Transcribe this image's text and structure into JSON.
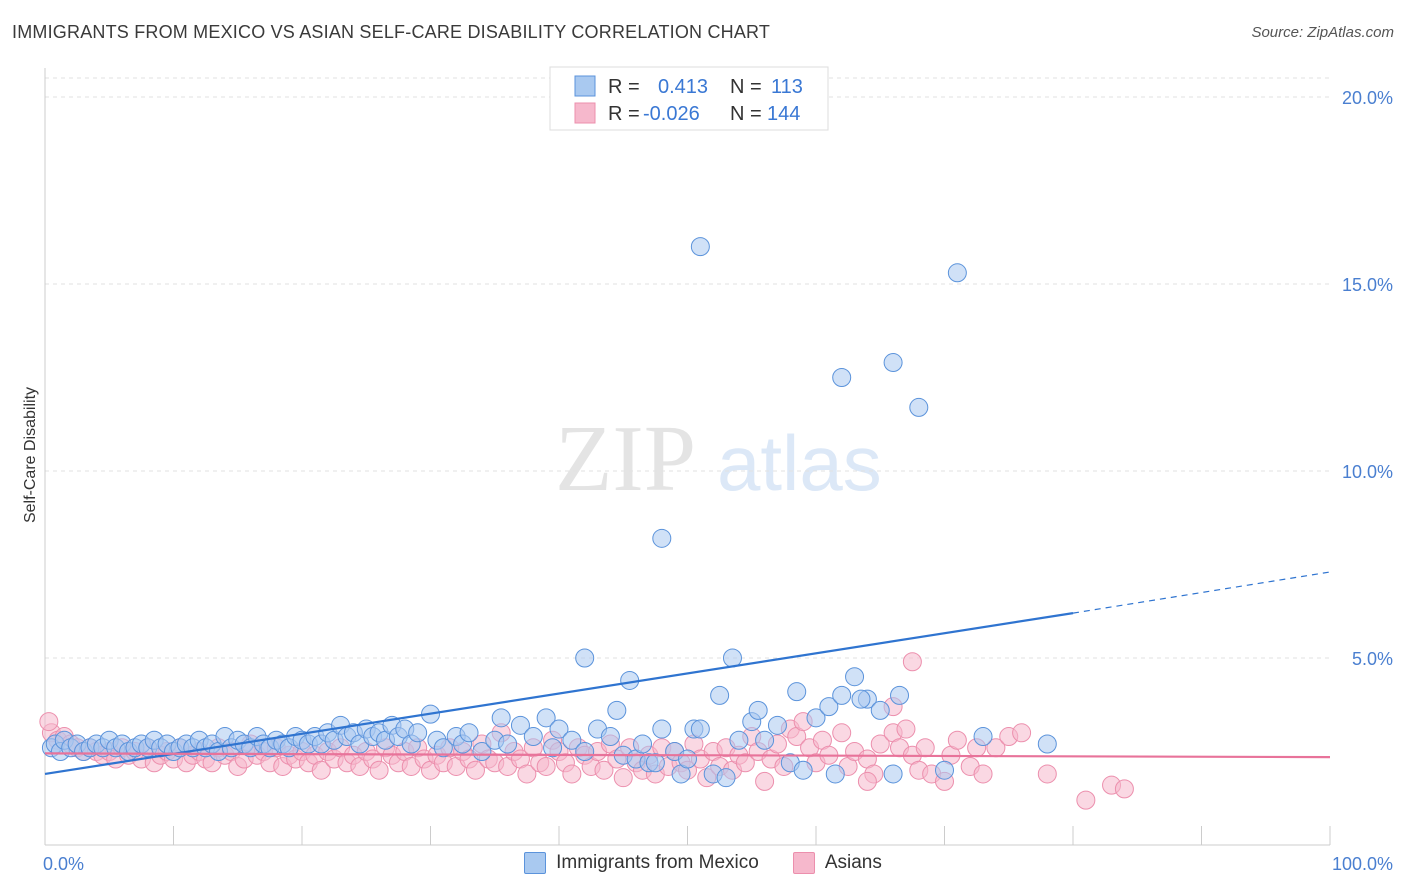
{
  "title": "IMMIGRANTS FROM MEXICO VS ASIAN SELF-CARE DISABILITY CORRELATION CHART",
  "source": "Source: ZipAtlas.com",
  "watermark": {
    "zip": "ZIP",
    "atlas": "atlas"
  },
  "legend_top": {
    "rows": [
      {
        "r_label": "R =",
        "r_value": "0.413",
        "n_label": "N =",
        "n_value": "113"
      },
      {
        "r_label": "R =",
        "r_value": "-0.026",
        "n_label": "N =",
        "n_value": "144"
      }
    ]
  },
  "legend_bottom": {
    "mexico": "Immigrants from Mexico",
    "asians": "Asians"
  },
  "chart_data": {
    "type": "scatter",
    "xlabel": "",
    "ylabel": "Self-Care Disability",
    "xlim": [
      0,
      100
    ],
    "ylim": [
      0,
      20.5
    ],
    "x_tick_labels": [
      "0.0%",
      "100.0%"
    ],
    "y_ticks": [
      5,
      10,
      15,
      20
    ],
    "y_tick_labels": [
      "5.0%",
      "10.0%",
      "15.0%",
      "20.0%"
    ],
    "grid": true,
    "colors": {
      "mexico_fill": "#a9c9f0",
      "mexico_stroke": "#5b93db",
      "mexico_line": "#2f74d0",
      "asians_fill": "#f6b8cc",
      "asians_stroke": "#ec8fad",
      "asians_line": "#e8739a"
    },
    "series": [
      {
        "name": "Immigrants from Mexico",
        "trend": {
          "x0": 0,
          "y0": 1.9,
          "x1": 80,
          "y1": 6.2,
          "x_dash_end": 100,
          "y_dash_end": 7.3
        },
        "points": [
          [
            0.5,
            2.6
          ],
          [
            0.8,
            2.7
          ],
          [
            1.2,
            2.5
          ],
          [
            1.5,
            2.8
          ],
          [
            2,
            2.6
          ],
          [
            2.5,
            2.7
          ],
          [
            3,
            2.5
          ],
          [
            3.5,
            2.6
          ],
          [
            4,
            2.7
          ],
          [
            4.5,
            2.6
          ],
          [
            5,
            2.8
          ],
          [
            5.5,
            2.6
          ],
          [
            6,
            2.7
          ],
          [
            6.5,
            2.5
          ],
          [
            7,
            2.6
          ],
          [
            7.5,
            2.7
          ],
          [
            8,
            2.6
          ],
          [
            8.5,
            2.8
          ],
          [
            9,
            2.6
          ],
          [
            9.5,
            2.7
          ],
          [
            10,
            2.5
          ],
          [
            10.5,
            2.6
          ],
          [
            11,
            2.7
          ],
          [
            11.5,
            2.6
          ],
          [
            12,
            2.8
          ],
          [
            12.5,
            2.6
          ],
          [
            13,
            2.7
          ],
          [
            13.5,
            2.5
          ],
          [
            14,
            2.9
          ],
          [
            14.5,
            2.6
          ],
          [
            15,
            2.8
          ],
          [
            15.5,
            2.7
          ],
          [
            16,
            2.6
          ],
          [
            16.5,
            2.9
          ],
          [
            17,
            2.7
          ],
          [
            17.5,
            2.6
          ],
          [
            18,
            2.8
          ],
          [
            18.5,
            2.7
          ],
          [
            19,
            2.6
          ],
          [
            19.5,
            2.9
          ],
          [
            20,
            2.8
          ],
          [
            20.5,
            2.7
          ],
          [
            21,
            2.9
          ],
          [
            21.5,
            2.7
          ],
          [
            22,
            3.0
          ],
          [
            22.5,
            2.8
          ],
          [
            23,
            3.2
          ],
          [
            23.5,
            2.9
          ],
          [
            24,
            3.0
          ],
          [
            24.5,
            2.7
          ],
          [
            25,
            3.1
          ],
          [
            25.5,
            2.9
          ],
          [
            26,
            3.0
          ],
          [
            26.5,
            2.8
          ],
          [
            27,
            3.2
          ],
          [
            27.5,
            2.9
          ],
          [
            28,
            3.1
          ],
          [
            28.5,
            2.7
          ],
          [
            29,
            3.0
          ],
          [
            30,
            3.5
          ],
          [
            30.5,
            2.8
          ],
          [
            31,
            2.6
          ],
          [
            32,
            2.9
          ],
          [
            32.5,
            2.7
          ],
          [
            33,
            3.0
          ],
          [
            34,
            2.5
          ],
          [
            35,
            2.8
          ],
          [
            35.5,
            3.4
          ],
          [
            36,
            2.7
          ],
          [
            37,
            3.2
          ],
          [
            38,
            2.9
          ],
          [
            39,
            3.4
          ],
          [
            39.5,
            2.6
          ],
          [
            40,
            3.1
          ],
          [
            41,
            2.8
          ],
          [
            42,
            2.5
          ],
          [
            43,
            3.1
          ],
          [
            44,
            2.9
          ],
          [
            44.5,
            3.6
          ],
          [
            45,
            2.4
          ],
          [
            46,
            2.3
          ],
          [
            46.5,
            2.7
          ],
          [
            47,
            2.2
          ],
          [
            47.5,
            2.2
          ],
          [
            48,
            3.1
          ],
          [
            49,
            2.5
          ],
          [
            49.5,
            1.9
          ],
          [
            50,
            2.3
          ],
          [
            50.5,
            3.1
          ],
          [
            51,
            3.1
          ],
          [
            52,
            1.9
          ],
          [
            52.5,
            4.0
          ],
          [
            53,
            1.8
          ],
          [
            53.5,
            5.0
          ],
          [
            54,
            2.8
          ],
          [
            55,
            3.3
          ],
          [
            55.5,
            3.6
          ],
          [
            56,
            2.8
          ],
          [
            57,
            3.2
          ],
          [
            58,
            2.2
          ],
          [
            58.5,
            4.1
          ],
          [
            59,
            2.0
          ],
          [
            60,
            3.4
          ],
          [
            61,
            3.7
          ],
          [
            61.5,
            1.9
          ],
          [
            62,
            4.0
          ],
          [
            63,
            4.5
          ],
          [
            64,
            3.9
          ],
          [
            65,
            3.6
          ],
          [
            66,
            1.9
          ],
          [
            66.5,
            4.0
          ],
          [
            70,
            2.0
          ],
          [
            73,
            2.9
          ]
        ],
        "outliers": [
          [
            51,
            16.0
          ],
          [
            71,
            15.3
          ],
          [
            62,
            12.5
          ],
          [
            66,
            12.9
          ],
          [
            68,
            11.7
          ],
          [
            48,
            8.2
          ],
          [
            42,
            5.0
          ],
          [
            45.5,
            4.4
          ],
          [
            63.5,
            3.9
          ],
          [
            78,
            2.7
          ]
        ]
      },
      {
        "name": "Asians",
        "trend": {
          "x0": 0,
          "y0": 2.45,
          "x1": 100,
          "y1": 2.35
        },
        "points": [
          [
            0.5,
            3.0
          ],
          [
            1,
            2.8
          ],
          [
            1.5,
            2.9
          ],
          [
            2,
            2.7
          ],
          [
            2.5,
            2.6
          ],
          [
            3,
            2.5
          ],
          [
            3.5,
            2.6
          ],
          [
            4,
            2.5
          ],
          [
            4.5,
            2.4
          ],
          [
            5,
            2.5
          ],
          [
            5.5,
            2.3
          ],
          [
            6,
            2.6
          ],
          [
            6.5,
            2.4
          ],
          [
            7,
            2.5
          ],
          [
            7.5,
            2.3
          ],
          [
            8,
            2.6
          ],
          [
            8.5,
            2.2
          ],
          [
            9,
            2.4
          ],
          [
            9.5,
            2.5
          ],
          [
            10,
            2.3
          ],
          [
            10.5,
            2.6
          ],
          [
            11,
            2.2
          ],
          [
            11.5,
            2.4
          ],
          [
            12,
            2.5
          ],
          [
            12.5,
            2.3
          ],
          [
            13,
            2.2
          ],
          [
            13.5,
            2.6
          ],
          [
            14,
            2.4
          ],
          [
            14.5,
            2.5
          ],
          [
            15,
            2.1
          ],
          [
            15.5,
            2.3
          ],
          [
            16,
            2.7
          ],
          [
            16.5,
            2.4
          ],
          [
            17,
            2.5
          ],
          [
            17.5,
            2.2
          ],
          [
            18,
            2.6
          ],
          [
            18.5,
            2.1
          ],
          [
            19,
            2.4
          ],
          [
            19.5,
            2.3
          ],
          [
            20,
            2.5
          ],
          [
            20.5,
            2.2
          ],
          [
            21,
            2.4
          ],
          [
            21.5,
            2.0
          ],
          [
            22,
            2.5
          ],
          [
            22.5,
            2.3
          ],
          [
            23,
            2.6
          ],
          [
            23.5,
            2.2
          ],
          [
            24,
            2.4
          ],
          [
            24.5,
            2.1
          ],
          [
            25,
            2.5
          ],
          [
            25.5,
            2.3
          ],
          [
            26,
            2.0
          ],
          [
            26.5,
            2.6
          ],
          [
            27,
            2.4
          ],
          [
            27.5,
            2.2
          ],
          [
            28,
            2.5
          ],
          [
            28.5,
            2.1
          ],
          [
            29,
            2.6
          ],
          [
            29.5,
            2.3
          ],
          [
            30,
            2.0
          ],
          [
            30.5,
            2.4
          ],
          [
            31,
            2.2
          ],
          [
            31.5,
            2.6
          ],
          [
            32,
            2.1
          ],
          [
            32.5,
            2.5
          ],
          [
            33,
            2.3
          ],
          [
            33.5,
            2.0
          ],
          [
            34,
            2.7
          ],
          [
            34.5,
            2.3
          ],
          [
            35,
            2.2
          ],
          [
            35.5,
            3.0
          ],
          [
            36,
            2.1
          ],
          [
            36.5,
            2.5
          ],
          [
            37,
            2.3
          ],
          [
            37.5,
            1.9
          ],
          [
            38,
            2.6
          ],
          [
            38.5,
            2.2
          ],
          [
            39,
            2.1
          ],
          [
            39.5,
            2.8
          ],
          [
            40,
            2.5
          ],
          [
            40.5,
            2.2
          ],
          [
            41,
            1.9
          ],
          [
            41.5,
            2.6
          ],
          [
            42,
            2.4
          ],
          [
            42.5,
            2.1
          ],
          [
            43,
            2.5
          ],
          [
            43.5,
            2.0
          ],
          [
            44,
            2.7
          ],
          [
            44.5,
            2.3
          ],
          [
            45,
            1.8
          ],
          [
            45.5,
            2.6
          ],
          [
            46,
            2.2
          ],
          [
            46.5,
            2.0
          ],
          [
            47,
            2.4
          ],
          [
            47.5,
            1.9
          ],
          [
            48,
            2.6
          ],
          [
            48.5,
            2.1
          ],
          [
            49,
            2.5
          ],
          [
            49.5,
            2.2
          ],
          [
            50,
            2.0
          ],
          [
            50.5,
            2.7
          ],
          [
            51,
            2.3
          ],
          [
            51.5,
            1.8
          ],
          [
            52,
            2.5
          ],
          [
            52.5,
            2.1
          ],
          [
            53,
            2.6
          ],
          [
            53.5,
            2.0
          ],
          [
            54,
            2.4
          ],
          [
            54.5,
            2.2
          ],
          [
            55,
            2.9
          ],
          [
            55.5,
            2.5
          ],
          [
            56,
            1.7
          ],
          [
            56.5,
            2.3
          ],
          [
            57,
            2.7
          ],
          [
            57.5,
            2.1
          ],
          [
            58,
            3.1
          ],
          [
            58.5,
            2.9
          ],
          [
            59,
            3.3
          ],
          [
            59.5,
            2.6
          ],
          [
            60,
            2.2
          ],
          [
            60.5,
            2.8
          ],
          [
            61,
            2.4
          ],
          [
            62,
            3.0
          ],
          [
            62.5,
            2.1
          ],
          [
            63,
            2.5
          ],
          [
            64,
            2.3
          ],
          [
            64.5,
            1.9
          ],
          [
            65,
            2.7
          ],
          [
            66,
            3.0
          ],
          [
            66.5,
            2.6
          ],
          [
            67,
            3.1
          ],
          [
            67.5,
            2.4
          ],
          [
            68,
            2.0
          ],
          [
            68.5,
            2.6
          ],
          [
            69,
            1.9
          ],
          [
            70,
            1.7
          ],
          [
            70.5,
            2.4
          ],
          [
            71,
            2.8
          ],
          [
            72,
            2.1
          ],
          [
            72.5,
            2.6
          ],
          [
            73,
            1.9
          ],
          [
            74,
            2.6
          ],
          [
            75,
            2.9
          ],
          [
            76,
            3.0
          ],
          [
            78,
            1.9
          ],
          [
            81,
            1.2
          ],
          [
            83,
            1.6
          ],
          [
            84,
            1.5
          ]
        ],
        "outliers": [
          [
            0.3,
            3.3
          ],
          [
            67.5,
            4.9
          ],
          [
            66,
            3.7
          ],
          [
            64,
            1.7
          ]
        ]
      }
    ]
  }
}
